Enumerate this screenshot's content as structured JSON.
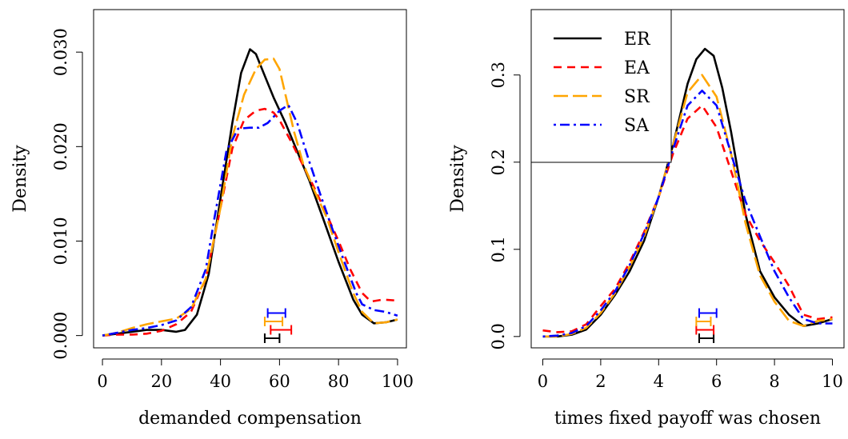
{
  "chart_data": [
    {
      "type": "line",
      "title": "",
      "xlabel": "demanded compensation",
      "ylabel": "Density",
      "xlim": [
        -3,
        103
      ],
      "ylim": [
        -0.0013,
        0.0345
      ],
      "xticks": [
        "0",
        "20",
        "40",
        "60",
        "80",
        "100"
      ],
      "yticks": [
        "0.000",
        "0.010",
        "0.020",
        "0.030"
      ],
      "grid": false,
      "series": [
        {
          "name": "ER",
          "color": "#000000",
          "dash": "solid",
          "x": [
            0,
            5,
            10,
            15,
            20,
            25,
            28,
            32,
            36,
            40,
            44,
            47,
            50,
            52,
            55,
            58,
            62,
            66,
            70,
            75,
            80,
            85,
            88,
            92,
            96,
            100
          ],
          "y": [
            0.0,
            0.0002,
            0.0004,
            0.0006,
            0.0006,
            0.0004,
            0.0006,
            0.0022,
            0.0065,
            0.0145,
            0.0225,
            0.0278,
            0.0303,
            0.0298,
            0.0275,
            0.0252,
            0.0225,
            0.0195,
            0.0165,
            0.0122,
            0.0078,
            0.0038,
            0.0022,
            0.0013,
            0.0014,
            0.0017
          ]
        },
        {
          "name": "EA",
          "color": "#ff0000",
          "dash": "dashed",
          "x": [
            0,
            5,
            10,
            15,
            20,
            25,
            30,
            35,
            40,
            44,
            48,
            52,
            55,
            58,
            60,
            64,
            68,
            72,
            76,
            80,
            84,
            88,
            91,
            95,
            100
          ],
          "y": [
            0.0,
            0.0001,
            0.0001,
            0.0002,
            0.0005,
            0.0012,
            0.0025,
            0.006,
            0.0135,
            0.0198,
            0.0228,
            0.0238,
            0.024,
            0.0236,
            0.0228,
            0.0205,
            0.018,
            0.0155,
            0.0128,
            0.01,
            0.007,
            0.0045,
            0.0036,
            0.0038,
            0.0037
          ]
        },
        {
          "name": "SR",
          "color": "#ffa500",
          "dash": "longdash",
          "x": [
            0,
            5,
            10,
            15,
            20,
            25,
            30,
            35,
            40,
            44,
            48,
            52,
            55,
            58,
            60,
            62,
            65,
            68,
            72,
            76,
            80,
            85,
            88,
            92,
            96,
            100
          ],
          "y": [
            0.0,
            0.0003,
            0.0008,
            0.0012,
            0.0015,
            0.0018,
            0.0028,
            0.006,
            0.0135,
            0.021,
            0.0255,
            0.0282,
            0.0292,
            0.0293,
            0.0282,
            0.0255,
            0.0215,
            0.0182,
            0.0152,
            0.0125,
            0.0088,
            0.0045,
            0.0025,
            0.0013,
            0.0014,
            0.0017
          ]
        },
        {
          "name": "SA",
          "color": "#0000ff",
          "dash": "dotdash",
          "x": [
            0,
            5,
            10,
            15,
            20,
            25,
            30,
            35,
            38,
            42,
            46,
            50,
            53,
            56,
            60,
            63,
            66,
            70,
            74,
            78,
            82,
            86,
            88,
            92,
            96,
            100
          ],
          "y": [
            0.0,
            0.0003,
            0.0006,
            0.0008,
            0.0011,
            0.0016,
            0.003,
            0.007,
            0.0125,
            0.0195,
            0.0219,
            0.022,
            0.022,
            0.0225,
            0.0238,
            0.0244,
            0.0225,
            0.0185,
            0.0148,
            0.0112,
            0.0078,
            0.0045,
            0.0033,
            0.0027,
            0.0025,
            0.0021
          ]
        }
      ],
      "intervals": [
        {
          "series": "ER",
          "color": "#000000",
          "low": 55,
          "high": 60,
          "level": 0
        },
        {
          "series": "EA",
          "color": "#ff0000",
          "low": 57,
          "high": 64,
          "level": 1
        },
        {
          "series": "SR",
          "color": "#ffa500",
          "low": 55,
          "high": 61,
          "level": 2
        },
        {
          "series": "SA",
          "color": "#0000ff",
          "low": 56,
          "high": 62,
          "level": 3
        }
      ]
    },
    {
      "type": "line",
      "title": "",
      "xlabel": "times fixed payoff was chosen",
      "ylabel": "Density",
      "xlim": [
        -0.4,
        10.4
      ],
      "ylim": [
        -0.013,
        0.375
      ],
      "xticks": [
        "0",
        "2",
        "4",
        "6",
        "8",
        "10"
      ],
      "yticks": [
        "0.0",
        "0.1",
        "0.2",
        "0.3"
      ],
      "grid": false,
      "legend": {
        "position": "top-left",
        "entries": [
          {
            "label": "ER",
            "color": "#000000",
            "dash": "solid"
          },
          {
            "label": "EA",
            "color": "#ff0000",
            "dash": "dashed"
          },
          {
            "label": "SR",
            "color": "#ffa500",
            "dash": "longdash"
          },
          {
            "label": "SA",
            "color": "#0000ff",
            "dash": "dotdash"
          }
        ]
      },
      "series": [
        {
          "name": "ER",
          "color": "#000000",
          "dash": "solid",
          "x": [
            0,
            0.5,
            1,
            1.5,
            2,
            2.5,
            3,
            3.5,
            4,
            4.5,
            5,
            5.3,
            5.6,
            5.9,
            6.2,
            6.5,
            7,
            7.5,
            8,
            8.5,
            9,
            9.5,
            10
          ],
          "y": [
            0.0,
            0.0,
            0.002,
            0.008,
            0.025,
            0.048,
            0.075,
            0.11,
            0.16,
            0.22,
            0.29,
            0.318,
            0.33,
            0.322,
            0.285,
            0.235,
            0.14,
            0.075,
            0.045,
            0.025,
            0.012,
            0.015,
            0.02
          ]
        },
        {
          "name": "EA",
          "color": "#ff0000",
          "dash": "dashed",
          "x": [
            0,
            0.5,
            1,
            1.5,
            2,
            2.5,
            3,
            3.5,
            4,
            4.5,
            5,
            5.5,
            6,
            6.5,
            7,
            7.5,
            8,
            8.5,
            9,
            9.5,
            10
          ],
          "y": [
            0.007,
            0.005,
            0.006,
            0.014,
            0.035,
            0.055,
            0.085,
            0.12,
            0.16,
            0.21,
            0.25,
            0.265,
            0.24,
            0.19,
            0.14,
            0.11,
            0.085,
            0.058,
            0.025,
            0.02,
            0.022
          ]
        },
        {
          "name": "SR",
          "color": "#ffa500",
          "dash": "longdash",
          "x": [
            0,
            0.5,
            1,
            1.5,
            2,
            2.5,
            3,
            3.5,
            4,
            4.5,
            5,
            5.5,
            6,
            6.5,
            7,
            7.5,
            8,
            8.5,
            9,
            9.5,
            10
          ],
          "y": [
            0.0,
            0.0,
            0.003,
            0.01,
            0.027,
            0.05,
            0.08,
            0.115,
            0.16,
            0.22,
            0.28,
            0.3,
            0.275,
            0.21,
            0.13,
            0.07,
            0.04,
            0.018,
            0.012,
            0.018,
            0.02
          ]
        },
        {
          "name": "SA",
          "color": "#0000ff",
          "dash": "dotdash",
          "x": [
            0,
            0.5,
            1,
            1.5,
            2,
            2.5,
            3,
            3.5,
            4,
            4.5,
            5,
            5.5,
            6,
            6.5,
            7,
            7.5,
            8,
            8.5,
            9,
            9.5,
            10
          ],
          "y": [
            0.0,
            0.001,
            0.004,
            0.012,
            0.03,
            0.052,
            0.082,
            0.118,
            0.16,
            0.215,
            0.265,
            0.282,
            0.265,
            0.21,
            0.155,
            0.115,
            0.075,
            0.045,
            0.02,
            0.015,
            0.015
          ]
        }
      ],
      "intervals": [
        {
          "series": "ER",
          "color": "#000000",
          "low": 5.4,
          "high": 5.9,
          "level": 0
        },
        {
          "series": "EA",
          "color": "#ff0000",
          "low": 5.3,
          "high": 5.9,
          "level": 1
        },
        {
          "series": "SR",
          "color": "#ffa500",
          "low": 5.3,
          "high": 5.8,
          "level": 2
        },
        {
          "series": "SA",
          "color": "#0000ff",
          "low": 5.4,
          "high": 6.0,
          "level": 3
        }
      ]
    }
  ]
}
